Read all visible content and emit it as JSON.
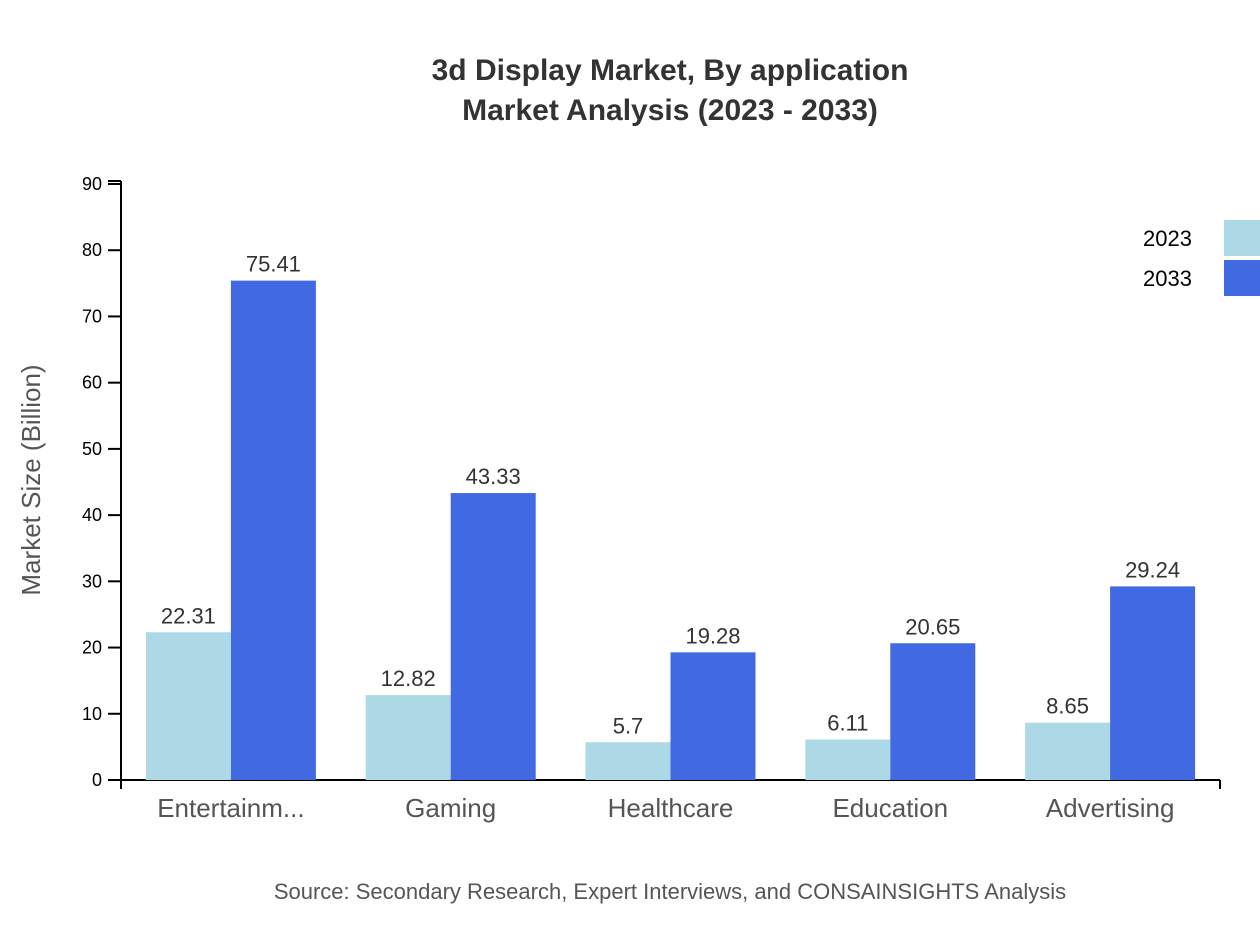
{
  "chart_data": {
    "type": "bar",
    "title": "3d Display Market, By application",
    "subtitle": "Market Analysis (2023 - 2033)",
    "ylabel": "Market Size (Billion)",
    "xlabel": "",
    "ylim": [
      0,
      90
    ],
    "yticks": [
      0,
      10,
      20,
      30,
      40,
      50,
      60,
      70,
      80,
      90
    ],
    "categories": [
      "Entertainm...",
      "Gaming",
      "Healthcare",
      "Education",
      "Advertising"
    ],
    "series": [
      {
        "name": "2023",
        "color": "#add8e6",
        "values": [
          22.31,
          12.82,
          5.7,
          6.11,
          8.65
        ]
      },
      {
        "name": "2033",
        "color": "#4169e1",
        "values": [
          75.41,
          43.33,
          19.28,
          20.65,
          29.24
        ]
      }
    ],
    "legend_position": "top-right",
    "grid": false,
    "source": "Source: Secondary Research, Expert Interviews, and CONSAINSIGHTS Analysis"
  }
}
